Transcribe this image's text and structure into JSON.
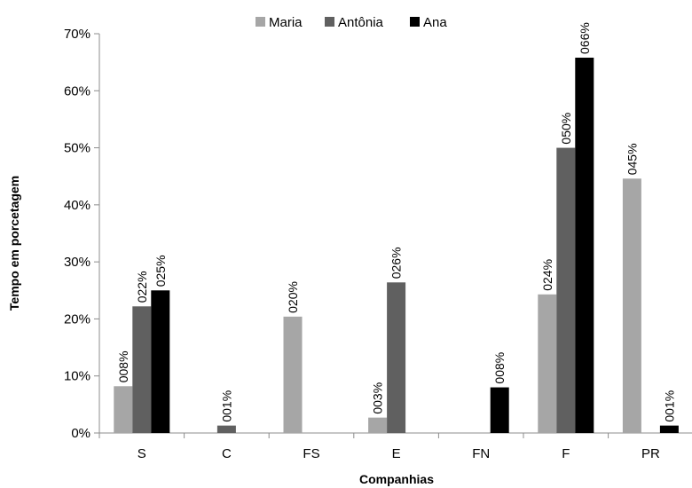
{
  "chart_data": {
    "type": "bar",
    "xlabel": "Companhias",
    "ylabel": "Tempo em porcetagem",
    "categories": [
      "S",
      "C",
      "FS",
      "E",
      "FN",
      "F",
      "PR"
    ],
    "ylim": [
      0,
      70
    ],
    "yticks": [
      0,
      10,
      20,
      30,
      40,
      50,
      60,
      70
    ],
    "ytick_labels": [
      "0%",
      "10%",
      "20%",
      "30%",
      "40%",
      "50%",
      "60%",
      "70%"
    ],
    "grid": false,
    "legend_position": "top-center",
    "series": [
      {
        "name": "Maria",
        "color": "#a6a6a6",
        "values": [
          8.2,
          null,
          20.4,
          2.7,
          null,
          24.3,
          44.6
        ],
        "labels": [
          "008%",
          "",
          "020%",
          "003%",
          "",
          "024%",
          "045%"
        ]
      },
      {
        "name": "Antônia",
        "color": "#606060",
        "values": [
          22.2,
          1.3,
          null,
          26.4,
          null,
          50.0,
          null
        ],
        "labels": [
          "022%",
          "001%",
          "",
          "026%",
          "",
          "050%",
          ""
        ]
      },
      {
        "name": "Ana",
        "color": "#000000",
        "values": [
          25.0,
          null,
          null,
          null,
          8.0,
          65.8,
          1.3
        ],
        "labels": [
          "025%",
          "",
          "",
          "",
          "008%",
          "066%",
          "001%"
        ]
      }
    ]
  }
}
